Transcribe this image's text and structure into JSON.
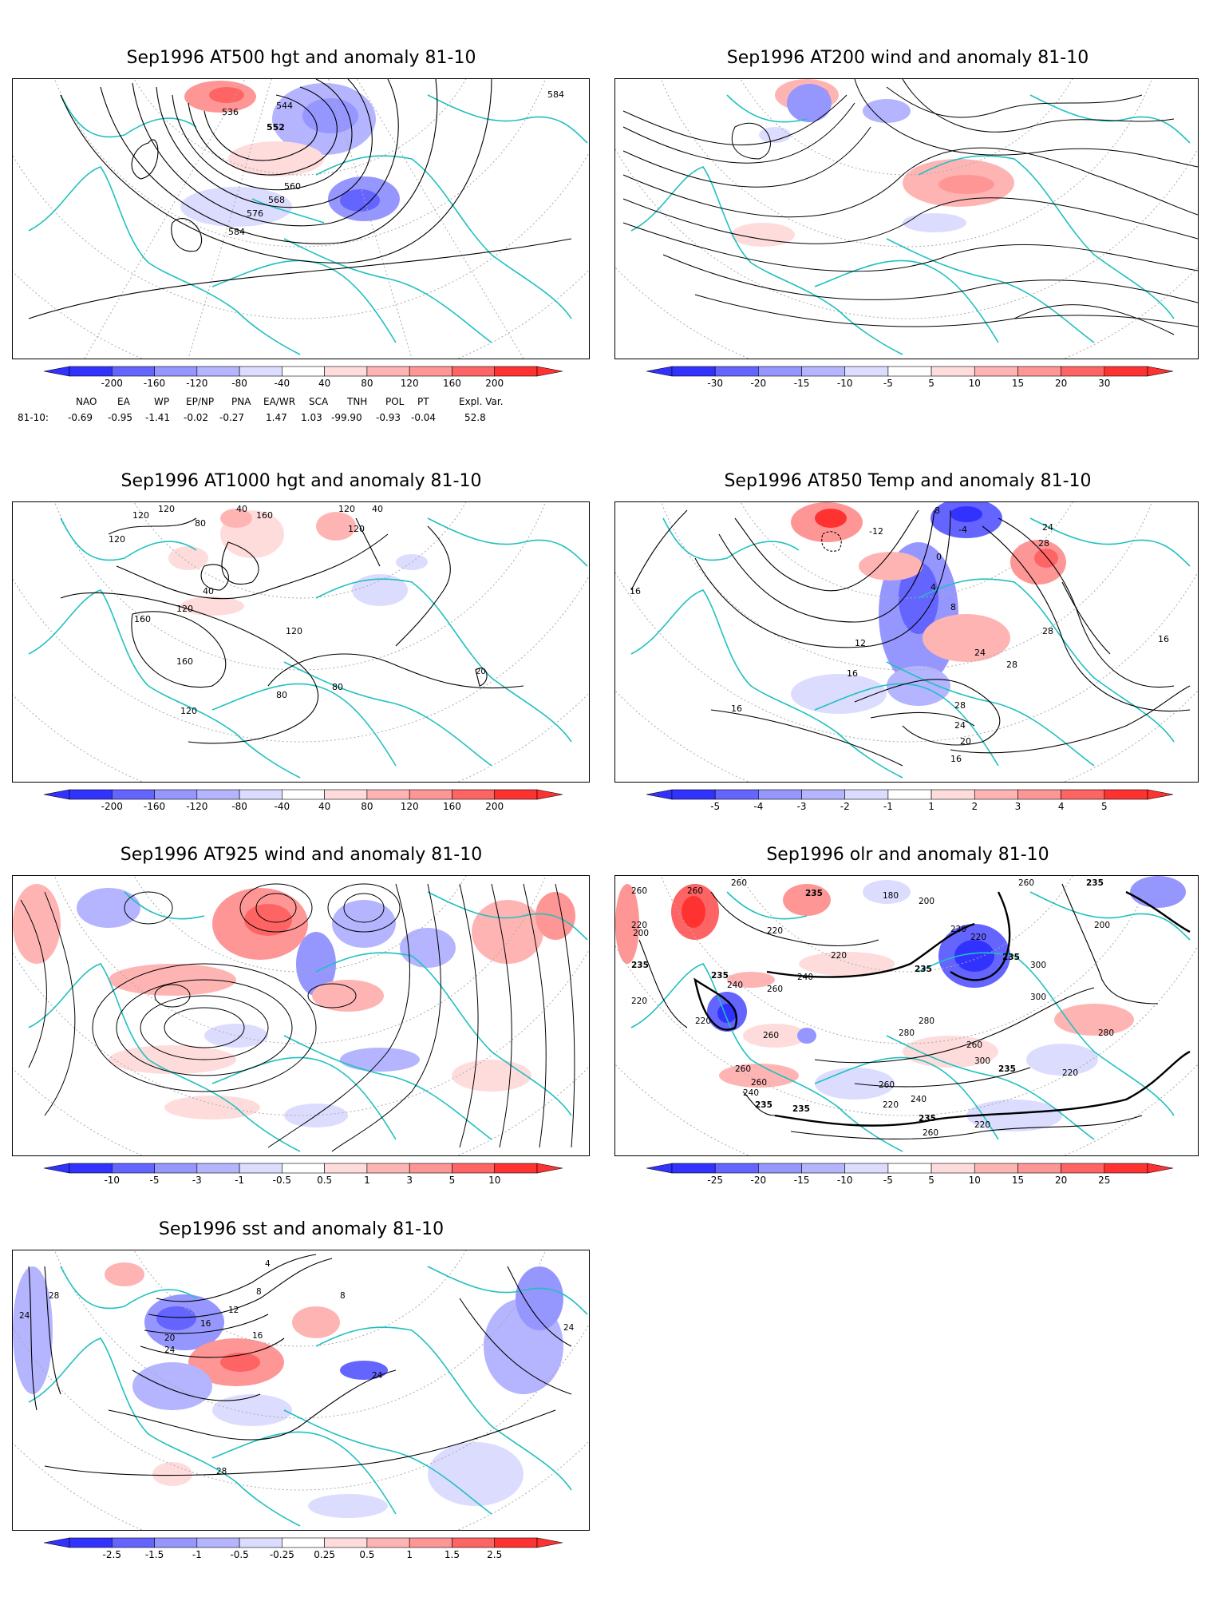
{
  "panels": [
    {
      "id": "p500",
      "title": "Sep1996 AT500 hgt and anomaly 81-10",
      "colorbar": [
        "-200",
        "-160",
        "-120",
        "-80",
        "-40",
        "40",
        "80",
        "120",
        "160",
        "200"
      ],
      "contour_labels": [
        "536",
        "544",
        "552",
        "560",
        "568",
        "576",
        "584",
        "584"
      ]
    },
    {
      "id": "p200",
      "title": "Sep1996 AT200 wind and anomaly 81-10",
      "colorbar": [
        "-30",
        "-20",
        "-15",
        "-10",
        "-5",
        "5",
        "10",
        "15",
        "20",
        "30"
      ],
      "contour_labels": []
    },
    {
      "id": "p1000",
      "title": "Sep1996 AT1000 hgt and anomaly 81-10",
      "colorbar": [
        "-200",
        "-160",
        "-120",
        "-80",
        "-40",
        "40",
        "80",
        "120",
        "160",
        "200"
      ],
      "contour_labels": [
        "120",
        "120",
        "120",
        "80",
        "40",
        "40",
        "120",
        "120",
        "160",
        "40",
        "160",
        "160",
        "120",
        "120",
        "80",
        "80",
        "120",
        "20"
      ]
    },
    {
      "id": "p850",
      "title": "Sep1996 AT850 Temp and anomaly 81-10",
      "colorbar": [
        "-5",
        "-4",
        "-3",
        "-2",
        "-1",
        "1",
        "2",
        "3",
        "4",
        "5"
      ],
      "contour_labels": [
        "8",
        "-4",
        "-12",
        "0",
        "4",
        "8",
        "24",
        "28",
        "16",
        "12",
        "16",
        "28",
        "24",
        "28",
        "16",
        "28",
        "24",
        "20",
        "16",
        "16"
      ]
    },
    {
      "id": "p925",
      "title": "Sep1996 AT925 wind and anomaly 81-10",
      "colorbar": [
        "-10",
        "-5",
        "-3",
        "-1",
        "-0.5",
        "0.5",
        "1",
        "3",
        "5",
        "10"
      ],
      "contour_labels": []
    },
    {
      "id": "polr",
      "title": "Sep1996 olr and anomaly 81-10",
      "colorbar": [
        "-25",
        "-20",
        "-15",
        "-10",
        "-5",
        "5",
        "10",
        "15",
        "20",
        "25"
      ],
      "contour_labels": [
        "260",
        "235",
        "180",
        "200",
        "260",
        "235",
        "260",
        "200",
        "220",
        "220",
        "220",
        "240",
        "235",
        "220",
        "200",
        "235",
        "240",
        "260",
        "220",
        "260",
        "235",
        "300",
        "235",
        "220",
        "220",
        "260",
        "280",
        "300",
        "260",
        "260",
        "280",
        "300",
        "235",
        "220",
        "260",
        "240",
        "260",
        "240",
        "235",
        "235",
        "235",
        "220",
        "260",
        "220",
        "280"
      ]
    },
    {
      "id": "psst",
      "title": "Sep1996 sst and anomaly 81-10",
      "colorbar": [
        "-2.5",
        "-1.5",
        "-1",
        "-0.5",
        "-0.25",
        "0.25",
        "0.5",
        "1",
        "1.5",
        "2.5"
      ],
      "contour_labels": [
        "24",
        "28",
        "4",
        "8",
        "12",
        "16",
        "20",
        "24",
        "16",
        "8",
        "24",
        "24",
        "28"
      ]
    }
  ],
  "indices": {
    "headers": [
      "NAO",
      "EA",
      "WP",
      "EP/NP",
      "PNA",
      "EA/WR",
      "SCA",
      "TNH",
      "POL",
      "PT",
      "Expl. Var."
    ],
    "row_label": "81-10:",
    "values": [
      "-0.69",
      "-0.95",
      "-1.41",
      "-0.02",
      "-0.27",
      "1.47",
      "1.03",
      "-99.90",
      "-0.93",
      "-0.04",
      "52.8"
    ]
  },
  "colors": {
    "blues": [
      "#3232ff",
      "#6464ff",
      "#9696ff",
      "#b4b4ff",
      "#dcdcff"
    ],
    "reds": [
      "#ffdcdc",
      "#ffb4b4",
      "#ff9696",
      "#ff6464",
      "#ff3232"
    ],
    "coast": "#20c0c0"
  }
}
